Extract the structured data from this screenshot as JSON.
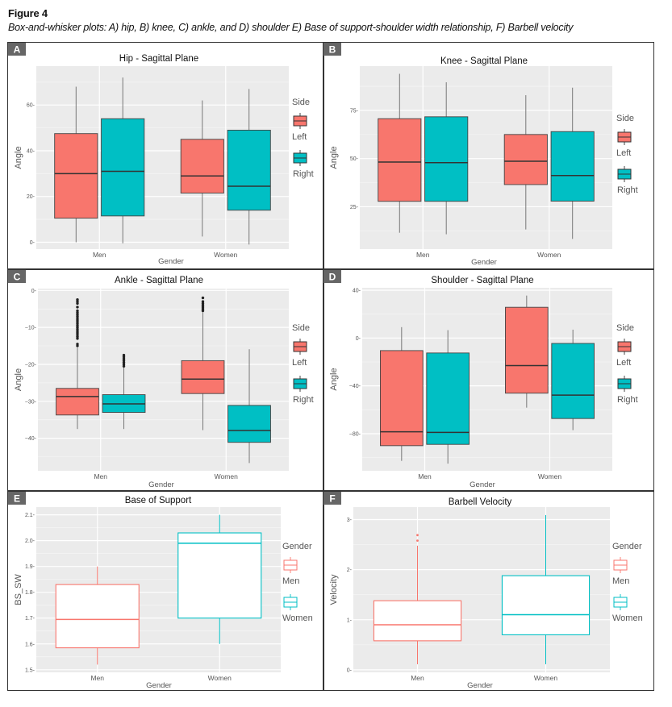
{
  "figure": {
    "title": "Figure 4",
    "caption": "Box-and-whisker plots: A) hip, B) knee, C) ankle, and D) shoulder E) Base of support-shoulder width relationship, F) Barbell velocity"
  },
  "colors": {
    "left": "#F8766D",
    "right": "#00BFC4",
    "panel_bg": "#EBEBEB",
    "grid": "#FFFFFF",
    "label_box": "#666666"
  },
  "chart_data": [
    {
      "id": "A",
      "type": "box",
      "title": "Hip - Sagittal Plane",
      "xlabel": "Gender",
      "ylabel": "Angle",
      "categories": [
        "Men",
        "Women"
      ],
      "ylim": [
        -3,
        77
      ],
      "yticks": [
        0,
        20,
        40,
        60
      ],
      "ytick_labels": [
        "0-",
        "20-",
        "40-",
        "60-"
      ],
      "fill_style": "filled",
      "legend": {
        "title": "Side",
        "position": "right",
        "entries": [
          "Left",
          "Right"
        ]
      },
      "series": [
        {
          "name": "Left",
          "color": "#F8766D",
          "boxes": [
            {
              "category": "Men",
              "lower": 0,
              "q1": 10.5,
              "median": 30,
              "q3": 47.5,
              "upper": 68,
              "outliers": []
            },
            {
              "category": "Women",
              "lower": 2.5,
              "q1": 21.5,
              "median": 29,
              "q3": 45,
              "upper": 62,
              "outliers": []
            }
          ]
        },
        {
          "name": "Right",
          "color": "#00BFC4",
          "boxes": [
            {
              "category": "Men",
              "lower": -0.5,
              "q1": 11.5,
              "median": 31,
              "q3": 54,
              "upper": 72,
              "outliers": []
            },
            {
              "category": "Women",
              "lower": -1,
              "q1": 14,
              "median": 24.5,
              "q3": 49,
              "upper": 67,
              "outliers": []
            }
          ]
        }
      ]
    },
    {
      "id": "B",
      "type": "box",
      "title": "Knee - Sagittal Plane",
      "xlabel": "Gender",
      "ylabel": "Angle",
      "categories": [
        "Men",
        "Women"
      ],
      "ylim": [
        3,
        98
      ],
      "yticks": [
        25,
        50,
        75
      ],
      "ytick_labels": [
        "25-",
        "50-",
        "75-"
      ],
      "fill_style": "filled",
      "legend": {
        "title": "Side",
        "position": "right",
        "entries": [
          "Left",
          "Right"
        ]
      },
      "series": [
        {
          "name": "Left",
          "color": "#F8766D",
          "boxes": [
            {
              "category": "Men",
              "lower": 11.5,
              "q1": 27.8,
              "median": 48.2,
              "q3": 70.7,
              "upper": 94,
              "outliers": []
            },
            {
              "category": "Women",
              "lower": 13.2,
              "q1": 36.5,
              "median": 48.6,
              "q3": 62.5,
              "upper": 82.9,
              "outliers": []
            }
          ]
        },
        {
          "name": "Right",
          "color": "#00BFC4",
          "boxes": [
            {
              "category": "Men",
              "lower": 10.7,
              "q1": 27.8,
              "median": 47.9,
              "q3": 71.7,
              "upper": 89.6,
              "outliers": []
            },
            {
              "category": "Women",
              "lower": 8.3,
              "q1": 27.9,
              "median": 41.2,
              "q3": 64,
              "upper": 86.8,
              "outliers": []
            }
          ]
        }
      ]
    },
    {
      "id": "C",
      "type": "box",
      "title": "Ankle - Sagittal Plane",
      "xlabel": "Gender",
      "ylabel": "Angle",
      "categories": [
        "Men",
        "Women"
      ],
      "ylim": [
        -48.8,
        0.5
      ],
      "yticks": [
        0,
        -10,
        -20,
        -30,
        -40
      ],
      "ytick_labels": [
        "0-",
        "−10-",
        "−20-",
        "−30-",
        "−40-"
      ],
      "fill_style": "filled",
      "legend": {
        "title": "Side",
        "position": "right",
        "entries": [
          "Left",
          "Right"
        ]
      },
      "series": [
        {
          "name": "Left",
          "color": "#F8766D",
          "boxes": [
            {
              "category": "Men",
              "lower": -37.5,
              "q1": -33.7,
              "median": -28.7,
              "q3": -26.5,
              "upper": -15.5,
              "outliers": [
                -2.5,
                -3,
                -3.5,
                -4.5,
                -5.5,
                -6,
                -6.5,
                -7,
                -7.5,
                -8,
                -8.5,
                -9,
                -9.5,
                -10,
                -10.5,
                -11,
                -11.5,
                -12,
                -12.5,
                -13,
                -14.5,
                -15
              ]
            },
            {
              "category": "Women",
              "lower": -37.8,
              "q1": -27.9,
              "median": -24,
              "q3": -19,
              "upper": -5.9,
              "outliers": [
                -2,
                -3,
                -3.5,
                -4,
                -4.5,
                -5,
                -5.5
              ]
            }
          ]
        },
        {
          "name": "Right",
          "color": "#00BFC4",
          "boxes": [
            {
              "category": "Men",
              "lower": -37.5,
              "q1": -33,
              "median": -30.7,
              "q3": -28.2,
              "upper": -20.7,
              "outliers": [
                -17.5,
                -18,
                -18.5,
                -19,
                -19.5,
                -20,
                -20.5
              ]
            },
            {
              "category": "Women",
              "lower": -46.7,
              "q1": -41.1,
              "median": -37.9,
              "q3": -31.1,
              "upper": -15.9,
              "outliers": []
            }
          ]
        }
      ]
    },
    {
      "id": "D",
      "type": "box",
      "title": "Shoulder - Sagittal Plane",
      "xlabel": "Gender",
      "ylabel": "Angle",
      "categories": [
        "Men",
        "Women"
      ],
      "ylim": [
        -111,
        42
      ],
      "yticks": [
        40,
        0,
        -40,
        -80
      ],
      "ytick_labels": [
        "40-",
        "0-",
        "−40-",
        "−80-"
      ],
      "fill_style": "filled",
      "legend": {
        "title": "Side",
        "position": "right",
        "entries": [
          "Left",
          "Right"
        ]
      },
      "series": [
        {
          "name": "Left",
          "color": "#F8766D",
          "boxes": [
            {
              "category": "Men",
              "lower": -102.7,
              "q1": -90,
              "median": -78.4,
              "q3": -10.5,
              "upper": 9.1,
              "outliers": []
            },
            {
              "category": "Women",
              "lower": -58.2,
              "q1": -46.1,
              "median": -23,
              "q3": 25.7,
              "upper": 35.5,
              "outliers": []
            }
          ]
        },
        {
          "name": "Right",
          "color": "#00BFC4",
          "boxes": [
            {
              "category": "Men",
              "lower": -105,
              "q1": -88.9,
              "median": -78.9,
              "q3": -12.5,
              "upper": 6.6,
              "outliers": []
            },
            {
              "category": "Women",
              "lower": -77,
              "q1": -67.3,
              "median": -47.7,
              "q3": -4.5,
              "upper": 7,
              "outliers": []
            }
          ]
        }
      ]
    },
    {
      "id": "E",
      "type": "box",
      "title": "Base of Support",
      "xlabel": "Gender",
      "ylabel": "BS_SW",
      "categories": [
        "Men",
        "Women"
      ],
      "ylim": [
        1.49,
        2.13
      ],
      "yticks": [
        1.5,
        1.6,
        1.7,
        1.8,
        1.9,
        2.0,
        2.1
      ],
      "ytick_labels": [
        "1.5-",
        "1.6-",
        "1.7-",
        "1.8-",
        "1.9-",
        "2.0-",
        "2.1-"
      ],
      "fill_style": "outline",
      "legend": {
        "title": "Gender",
        "position": "right",
        "entries": [
          "Men",
          "Women"
        ]
      },
      "series": [
        {
          "name": "Men",
          "color": "#F8766D",
          "boxes": [
            {
              "category": "Men",
              "lower": 1.52,
              "q1": 1.585,
              "median": 1.695,
              "q3": 1.83,
              "upper": 1.9,
              "outliers": []
            }
          ]
        },
        {
          "name": "Women",
          "color": "#00BFC4",
          "boxes": [
            {
              "category": "Women",
              "lower": 1.6,
              "q1": 1.7,
              "median": 1.99,
              "q3": 2.03,
              "upper": 2.1,
              "outliers": []
            }
          ]
        }
      ]
    },
    {
      "id": "F",
      "type": "box",
      "title": "Barbell Velocity",
      "xlabel": "Gender",
      "ylabel": "Velocity",
      "categories": [
        "Men",
        "Women"
      ],
      "ylim": [
        -0.05,
        3.25
      ],
      "yticks": [
        0,
        1,
        2,
        3
      ],
      "ytick_labels": [
        "0-",
        "1-",
        "2-",
        "3-"
      ],
      "fill_style": "outline",
      "legend": {
        "title": "Gender",
        "position": "right",
        "entries": [
          "Men",
          "Women"
        ]
      },
      "series": [
        {
          "name": "Men",
          "color": "#F8766D",
          "boxes": [
            {
              "category": "Men",
              "lower": 0.11,
              "q1": 0.58,
              "median": 0.9,
              "q3": 1.38,
              "upper": 2.48,
              "outliers": [
                2.58,
                2.69
              ]
            }
          ]
        },
        {
          "name": "Women",
          "color": "#00BFC4",
          "boxes": [
            {
              "category": "Women",
              "lower": 0.11,
              "q1": 0.7,
              "median": 1.1,
              "q3": 1.88,
              "upper": 3.09,
              "outliers": []
            }
          ]
        }
      ]
    }
  ]
}
